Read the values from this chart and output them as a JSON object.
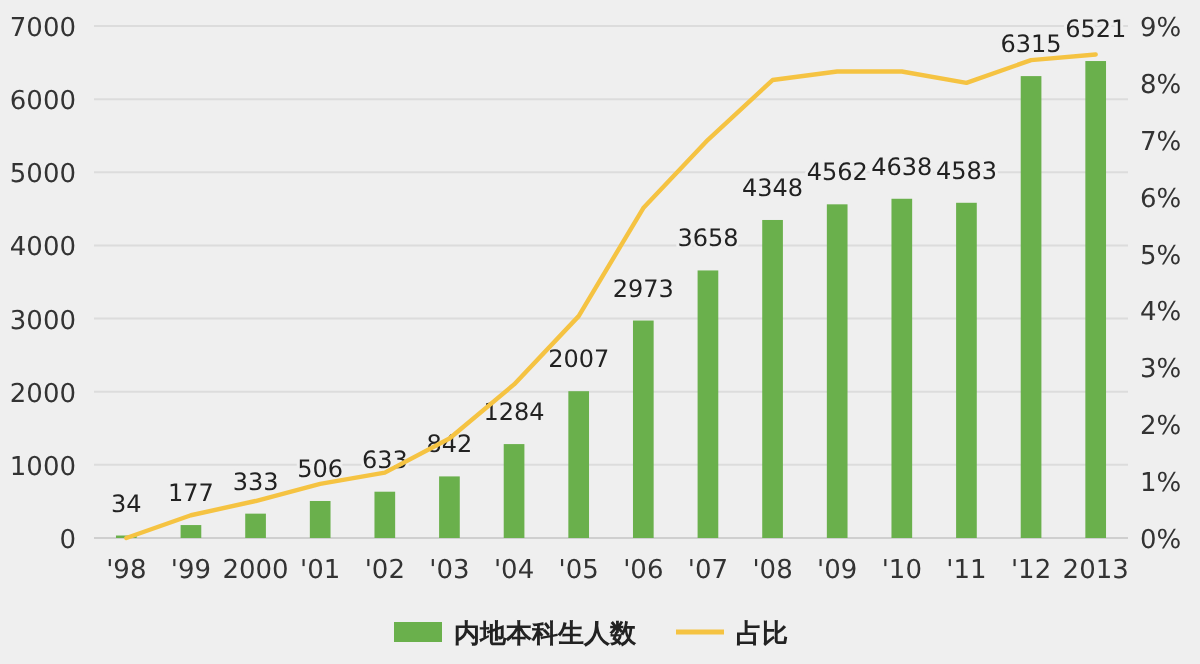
{
  "chart_data": {
    "type": "bar",
    "categories": [
      "'98",
      "'99",
      "2000",
      "'01",
      "'02",
      "'03",
      "'04",
      "'05",
      "'06",
      "'07",
      "'08",
      "'09",
      "'10",
      "'11",
      "'12",
      "2013"
    ],
    "series": [
      {
        "name": "内地本科生人数",
        "type": "bar",
        "color": "#6ab04c",
        "values": [
          34,
          177,
          333,
          506,
          633,
          842,
          1284,
          2007,
          2973,
          3658,
          4348,
          4562,
          4638,
          4583,
          6315,
          6521
        ],
        "value_labels": [
          "34",
          "177",
          "333",
          "506",
          "633",
          "842",
          "1284",
          "2007",
          "2973",
          "3658",
          "4348",
          "4562",
          "4638",
          "4583",
          "6315",
          "6521"
        ]
      },
      {
        "name": "占比",
        "type": "line",
        "axis": "y2",
        "color": "#f5c342",
        "values": [
          0,
          0.4,
          0.65,
          0.95,
          1.15,
          1.75,
          2.7,
          3.9,
          5.8,
          7.0,
          8.05,
          8.2,
          8.2,
          8.0,
          8.4,
          8.5
        ]
      }
    ],
    "ylim": [
      0,
      7000
    ],
    "yticks": [
      0,
      1000,
      2000,
      3000,
      4000,
      5000,
      6000,
      7000
    ],
    "y2lim": [
      0,
      9
    ],
    "y2ticks": [
      {
        "value": 0,
        "label": "0%"
      },
      {
        "value": 1,
        "label": "1%"
      },
      {
        "value": 2,
        "label": "2%"
      },
      {
        "value": 3,
        "label": "3%"
      },
      {
        "value": 4,
        "label": "4%"
      },
      {
        "value": 5,
        "label": "5%"
      },
      {
        "value": 6,
        "label": "6%"
      },
      {
        "value": 7,
        "label": "7%"
      },
      {
        "value": 8,
        "label": "8%"
      },
      {
        "value": 9,
        "label": "9%"
      }
    ],
    "grid": "y",
    "legend": "bottom"
  }
}
